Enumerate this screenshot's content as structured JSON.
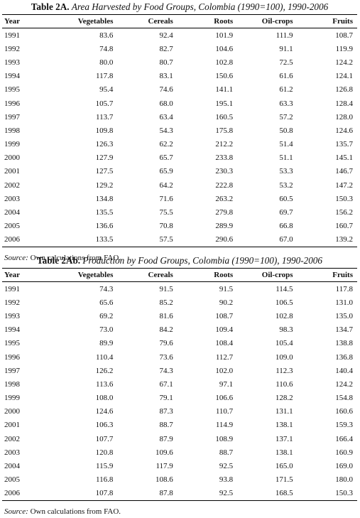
{
  "table_a": {
    "label": "Table 2A.",
    "subtitle": "Area Harvested by Food Groups, Colombia (1990=100), 1990-2006",
    "headers": [
      "Year",
      "Vegetables",
      "Cereals",
      "Roots",
      "Oil-crops",
      "Fruits"
    ],
    "rows": [
      [
        "1991",
        "83.6",
        "92.4",
        "101.9",
        "111.9",
        "108.7"
      ],
      [
        "1992",
        "74.8",
        "82.7",
        "104.6",
        "91.1",
        "119.9"
      ],
      [
        "1993",
        "80.0",
        "80.7",
        "102.8",
        "72.5",
        "124.2"
      ],
      [
        "1994",
        "117.8",
        "83.1",
        "150.6",
        "61.6",
        "124.1"
      ],
      [
        "1995",
        "95.4",
        "74.6",
        "141.1",
        "61.2",
        "126.8"
      ],
      [
        "1996",
        "105.7",
        "68.0",
        "195.1",
        "63.3",
        "128.4"
      ],
      [
        "1997",
        "113.7",
        "63.4",
        "160.5",
        "57.2",
        "128.0"
      ],
      [
        "1998",
        "109.8",
        "54.3",
        "175.8",
        "50.8",
        "124.6"
      ],
      [
        "1999",
        "126.3",
        "62.2",
        "212.2",
        "51.4",
        "135.7"
      ],
      [
        "2000",
        "127.9",
        "65.7",
        "233.8",
        "51.1",
        "145.1"
      ],
      [
        "2001",
        "127.5",
        "65.9",
        "230.3",
        "53.3",
        "146.7"
      ],
      [
        "2002",
        "129.2",
        "64.2",
        "222.8",
        "53.2",
        "147.2"
      ],
      [
        "2003",
        "134.8",
        "71.6",
        "263.2",
        "60.5",
        "150.3"
      ],
      [
        "2004",
        "135.5",
        "75.5",
        "279.8",
        "69.7",
        "156.2"
      ],
      [
        "2005",
        "136.6",
        "70.8",
        "289.9",
        "66.8",
        "160.7"
      ],
      [
        "2006",
        "133.5",
        "57.5",
        "290.6",
        "67.0",
        "139.2"
      ]
    ],
    "source_label": "Source:",
    "source_text": " Own calculations from FAO."
  },
  "table_b": {
    "label": "Table 2Ab.",
    "subtitle": "Production by Food Groups, Colombia (1990=100), 1990-2006",
    "headers": [
      "Year",
      "Vegetables",
      "Cereals",
      "Roots",
      "Oil-crops",
      "Fruits"
    ],
    "rows": [
      [
        "1991",
        "74.3",
        "91.5",
        "91.5",
        "114.5",
        "117.8"
      ],
      [
        "1992",
        "65.6",
        "85.2",
        "90.2",
        "106.5",
        "131.0"
      ],
      [
        "1993",
        "69.2",
        "81.6",
        "108.7",
        "102.8",
        "135.0"
      ],
      [
        "1994",
        "73.0",
        "84.2",
        "109.4",
        "98.3",
        "134.7"
      ],
      [
        "1995",
        "89.9",
        "79.6",
        "108.4",
        "105.4",
        "138.8"
      ],
      [
        "1996",
        "110.4",
        "73.6",
        "112.7",
        "109.0",
        "136.8"
      ],
      [
        "1997",
        "126.2",
        "74.3",
        "102.0",
        "112.3",
        "140.4"
      ],
      [
        "1998",
        "113.6",
        "67.1",
        "97.1",
        "110.6",
        "124.2"
      ],
      [
        "1999",
        "108.0",
        "79.1",
        "106.6",
        "128.2",
        "154.8"
      ],
      [
        "2000",
        "124.6",
        "87.3",
        "110.7",
        "131.1",
        "160.6"
      ],
      [
        "2001",
        "106.3",
        "88.7",
        "114.9",
        "138.1",
        "159.3"
      ],
      [
        "2002",
        "107.7",
        "87.9",
        "108.9",
        "137.1",
        "166.4"
      ],
      [
        "2003",
        "120.8",
        "109.6",
        "88.7",
        "138.1",
        "160.9"
      ],
      [
        "2004",
        "115.9",
        "117.9",
        "92.5",
        "165.0",
        "169.0"
      ],
      [
        "2005",
        "116.8",
        "108.6",
        "93.8",
        "171.5",
        "180.0"
      ],
      [
        "2006",
        "107.8",
        "87.8",
        "92.5",
        "168.5",
        "150.3"
      ]
    ],
    "source_label": "Source:",
    "source_text": " Own calculations from FAO."
  }
}
